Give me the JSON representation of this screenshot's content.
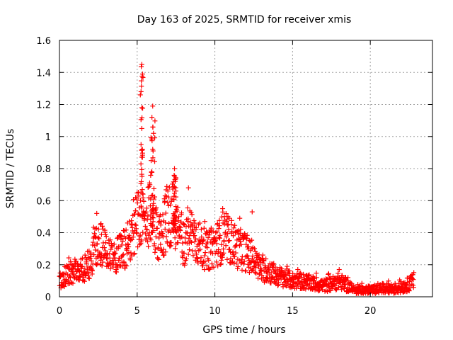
{
  "chart_data": {
    "type": "scatter",
    "title": "Day 163 of 2025, SRMTID for receiver xmis",
    "xlabel": "GPS time / hours",
    "ylabel": "SRMTID / TECUs",
    "xlim": [
      0,
      24
    ],
    "ylim": [
      0,
      1.6
    ],
    "xticks": [
      0,
      5,
      10,
      15,
      20
    ],
    "yticks": [
      0,
      0.2,
      0.4,
      0.6,
      0.8,
      1,
      1.2,
      1.4,
      1.6
    ],
    "xtick_labels": [
      "0",
      "5",
      "10",
      "15",
      "20"
    ],
    "ytick_labels": [
      "0",
      "0.2",
      "0.4",
      "0.6",
      "0.8",
      "1",
      "1.2",
      "1.4",
      "1.6"
    ],
    "grid": true,
    "marker": "+",
    "color": "#ff0000",
    "series": [
      {
        "name": "SRMTID",
        "profile": [
          [
            0.0,
            0.1
          ],
          [
            0.5,
            0.14
          ],
          [
            1.0,
            0.16
          ],
          [
            1.5,
            0.17
          ],
          [
            2.0,
            0.21
          ],
          [
            2.3,
            0.32
          ],
          [
            2.5,
            0.35
          ],
          [
            3.0,
            0.28
          ],
          [
            3.5,
            0.24
          ],
          [
            4.0,
            0.28
          ],
          [
            4.5,
            0.34
          ],
          [
            4.8,
            0.45
          ],
          [
            5.0,
            0.48
          ],
          [
            5.3,
            0.55
          ],
          [
            5.6,
            0.42
          ],
          [
            5.9,
            0.6
          ],
          [
            6.2,
            0.4
          ],
          [
            6.5,
            0.38
          ],
          [
            7.0,
            0.52
          ],
          [
            7.3,
            0.5
          ],
          [
            7.6,
            0.45
          ],
          [
            8.0,
            0.33
          ],
          [
            8.5,
            0.4
          ],
          [
            9.0,
            0.33
          ],
          [
            9.5,
            0.28
          ],
          [
            10.0,
            0.32
          ],
          [
            10.5,
            0.36
          ],
          [
            11.0,
            0.35
          ],
          [
            11.5,
            0.3
          ],
          [
            12.0,
            0.28
          ],
          [
            12.5,
            0.22
          ],
          [
            13.0,
            0.17
          ],
          [
            13.5,
            0.16
          ],
          [
            14.0,
            0.13
          ],
          [
            14.5,
            0.12
          ],
          [
            15.0,
            0.1
          ],
          [
            15.5,
            0.1
          ],
          [
            16.0,
            0.09
          ],
          [
            16.5,
            0.08
          ],
          [
            17.0,
            0.07
          ],
          [
            17.5,
            0.08
          ],
          [
            18.0,
            0.1
          ],
          [
            18.5,
            0.07
          ],
          [
            19.0,
            0.04
          ],
          [
            19.5,
            0.04
          ],
          [
            20.0,
            0.04
          ],
          [
            20.5,
            0.05
          ],
          [
            21.0,
            0.05
          ],
          [
            21.5,
            0.05
          ],
          [
            22.0,
            0.06
          ],
          [
            22.5,
            0.08
          ],
          [
            22.8,
            0.1
          ]
        ],
        "peaks": [
          {
            "x": 5.3,
            "y": 1.45
          },
          {
            "x": 5.35,
            "y": 1.39
          },
          {
            "x": 5.25,
            "y": 1.28
          },
          {
            "x": 5.3,
            "y": 1.18
          },
          {
            "x": 5.3,
            "y": 1.05
          },
          {
            "x": 5.25,
            "y": 0.95
          },
          {
            "x": 6.0,
            "y": 1.19
          },
          {
            "x": 5.95,
            "y": 1.12
          },
          {
            "x": 6.05,
            "y": 1.02
          },
          {
            "x": 6.0,
            "y": 0.92
          },
          {
            "x": 5.9,
            "y": 0.85
          },
          {
            "x": 7.4,
            "y": 0.8
          },
          {
            "x": 7.45,
            "y": 0.72
          },
          {
            "x": 2.4,
            "y": 0.52
          },
          {
            "x": 10.5,
            "y": 0.55
          },
          {
            "x": 12.4,
            "y": 0.53
          },
          {
            "x": 8.3,
            "y": 0.68
          },
          {
            "x": 18.0,
            "y": 0.17
          },
          {
            "x": 4.9,
            "y": 0.62
          },
          {
            "x": 6.8,
            "y": 0.63
          },
          {
            "x": 11.6,
            "y": 0.49
          }
        ],
        "x_range": [
          0,
          22.8
        ],
        "samples": 1400
      }
    ]
  }
}
